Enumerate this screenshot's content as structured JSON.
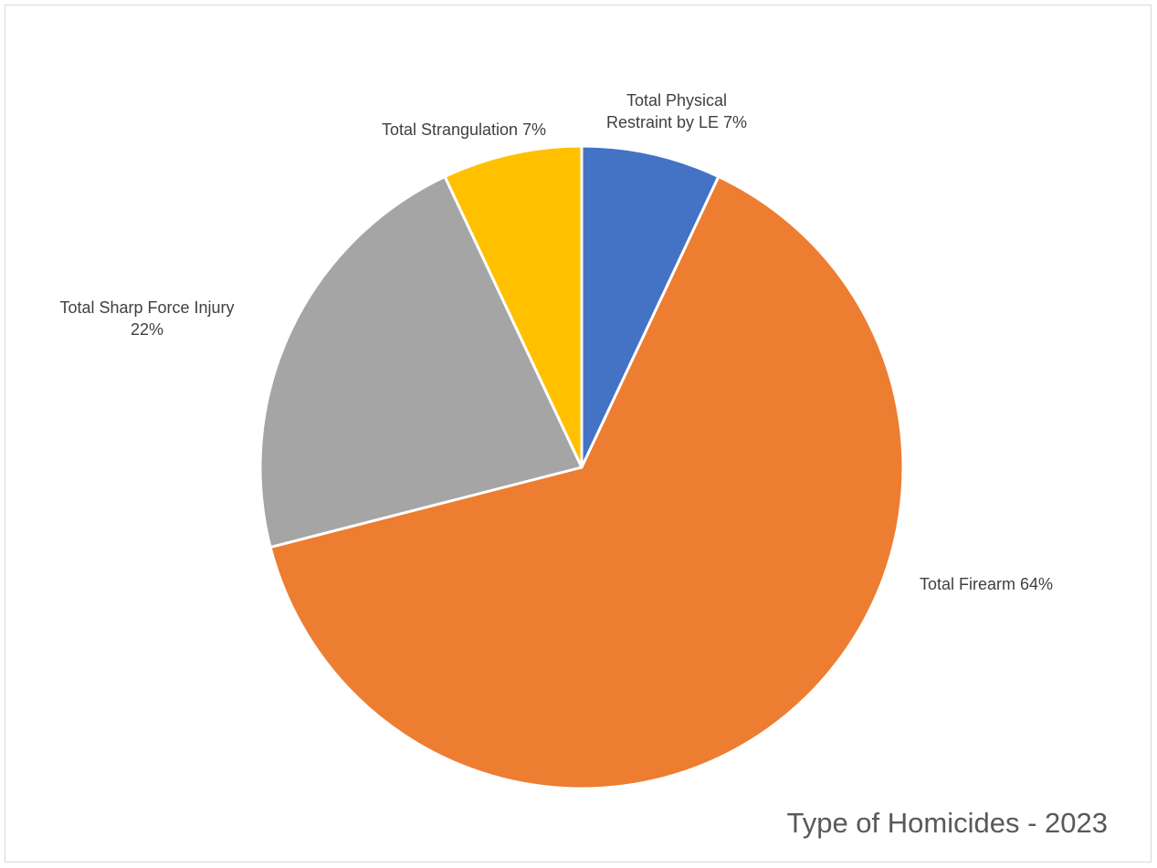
{
  "chart_data": {
    "type": "pie",
    "title": "Type of Homicides - 2023",
    "categories": [
      "Total Physical Restraint by LE",
      "Total Firearm",
      "Total Sharp Force Injury",
      "Total Strangulation"
    ],
    "values": [
      7,
      64,
      22,
      7
    ],
    "value_suffix": "%",
    "colors": [
      "#4472c4",
      "#ed7d31",
      "#a5a5a5",
      "#ffc000"
    ],
    "labels": [
      [
        "Total Physical",
        "Restraint by LE 7%"
      ],
      [
        "Total Firearm 64%"
      ],
      [
        "Total Sharp Force Injury",
        "22%"
      ],
      [
        "Total Strangulation 7%"
      ]
    ],
    "start_angle_deg": 0,
    "direction": "clockwise",
    "legend": "none",
    "slice_border_color": "#ffffff"
  }
}
